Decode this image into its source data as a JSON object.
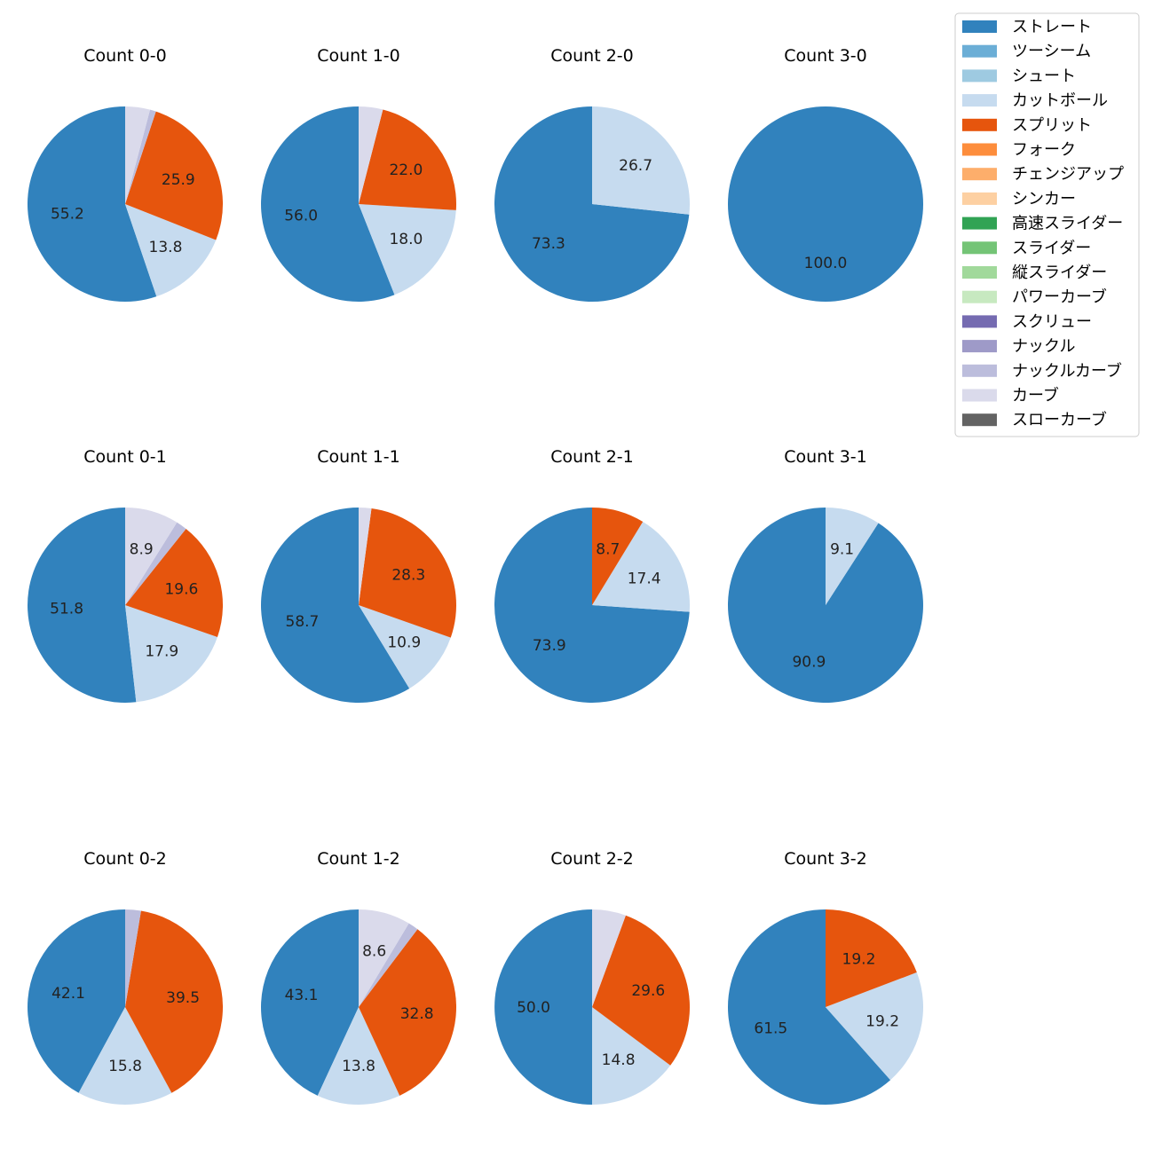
{
  "legend": {
    "items": [
      {
        "label": "ストレート",
        "color": "#3182bd"
      },
      {
        "label": "ツーシーム",
        "color": "#6baed6"
      },
      {
        "label": "シュート",
        "color": "#9ecae1"
      },
      {
        "label": "カットボール",
        "color": "#c6dbef"
      },
      {
        "label": "スプリット",
        "color": "#e6550d"
      },
      {
        "label": "フォーク",
        "color": "#fd8d3c"
      },
      {
        "label": "チェンジアップ",
        "color": "#fdae6b"
      },
      {
        "label": "シンカー",
        "color": "#fdd0a2"
      },
      {
        "label": "高速スライダー",
        "color": "#31a354"
      },
      {
        "label": "スライダー",
        "color": "#74c476"
      },
      {
        "label": "縦スライダー",
        "color": "#a1d99b"
      },
      {
        "label": "パワーカーブ",
        "color": "#c7e9c0"
      },
      {
        "label": "スクリュー",
        "color": "#756bb1"
      },
      {
        "label": "ナックル",
        "color": "#9e9ac8"
      },
      {
        "label": "ナックルカーブ",
        "color": "#bcbddc"
      },
      {
        "label": "カーブ",
        "color": "#dadaeb"
      },
      {
        "label": "スローカーブ",
        "color": "#636363"
      }
    ]
  },
  "chart_data": [
    {
      "type": "pie",
      "title": "Count 0-0",
      "slices": [
        {
          "pitch": "ストレート",
          "value": 55.2,
          "label": "55.2"
        },
        {
          "pitch": "カットボール",
          "value": 13.8,
          "label": "13.8"
        },
        {
          "pitch": "スプリット",
          "value": 25.9,
          "label": "25.9"
        },
        {
          "pitch": "ナックルカーブ",
          "value": 1.0,
          "label": ""
        },
        {
          "pitch": "カーブ",
          "value": 4.1,
          "label": ""
        }
      ]
    },
    {
      "type": "pie",
      "title": "Count 1-0",
      "slices": [
        {
          "pitch": "ストレート",
          "value": 56.0,
          "label": "56.0"
        },
        {
          "pitch": "カットボール",
          "value": 18.0,
          "label": "18.0"
        },
        {
          "pitch": "スプリット",
          "value": 22.0,
          "label": "22.0"
        },
        {
          "pitch": "カーブ",
          "value": 4.0,
          "label": ""
        }
      ]
    },
    {
      "type": "pie",
      "title": "Count 2-0",
      "slices": [
        {
          "pitch": "ストレート",
          "value": 73.3,
          "label": "73.3"
        },
        {
          "pitch": "カットボール",
          "value": 26.7,
          "label": "26.7"
        }
      ]
    },
    {
      "type": "pie",
      "title": "Count 3-0",
      "slices": [
        {
          "pitch": "ストレート",
          "value": 100.0,
          "label": "100.0"
        }
      ]
    },
    {
      "type": "pie",
      "title": "Count 0-1",
      "slices": [
        {
          "pitch": "ストレート",
          "value": 51.8,
          "label": "51.8"
        },
        {
          "pitch": "カットボール",
          "value": 17.9,
          "label": "17.9"
        },
        {
          "pitch": "スプリット",
          "value": 19.6,
          "label": "19.6"
        },
        {
          "pitch": "ナックルカーブ",
          "value": 1.8,
          "label": ""
        },
        {
          "pitch": "カーブ",
          "value": 8.9,
          "label": "8.9"
        }
      ]
    },
    {
      "type": "pie",
      "title": "Count 1-1",
      "slices": [
        {
          "pitch": "ストレート",
          "value": 58.7,
          "label": "58.7"
        },
        {
          "pitch": "カットボール",
          "value": 10.9,
          "label": "10.9"
        },
        {
          "pitch": "スプリット",
          "value": 28.3,
          "label": "28.3"
        },
        {
          "pitch": "カーブ",
          "value": 2.1,
          "label": ""
        }
      ]
    },
    {
      "type": "pie",
      "title": "Count 2-1",
      "slices": [
        {
          "pitch": "ストレート",
          "value": 73.9,
          "label": "73.9"
        },
        {
          "pitch": "カットボール",
          "value": 17.4,
          "label": "17.4"
        },
        {
          "pitch": "スプリット",
          "value": 8.7,
          "label": "8.7"
        }
      ]
    },
    {
      "type": "pie",
      "title": "Count 3-1",
      "slices": [
        {
          "pitch": "ストレート",
          "value": 90.9,
          "label": "90.9"
        },
        {
          "pitch": "カットボール",
          "value": 9.1,
          "label": "9.1"
        }
      ]
    },
    {
      "type": "pie",
      "title": "Count 0-2",
      "slices": [
        {
          "pitch": "ストレート",
          "value": 42.1,
          "label": "42.1"
        },
        {
          "pitch": "カットボール",
          "value": 15.8,
          "label": "15.8"
        },
        {
          "pitch": "スプリット",
          "value": 39.5,
          "label": "39.5"
        },
        {
          "pitch": "ナックルカーブ",
          "value": 2.6,
          "label": ""
        }
      ]
    },
    {
      "type": "pie",
      "title": "Count 1-2",
      "slices": [
        {
          "pitch": "ストレート",
          "value": 43.1,
          "label": "43.1"
        },
        {
          "pitch": "カットボール",
          "value": 13.8,
          "label": "13.8"
        },
        {
          "pitch": "スプリット",
          "value": 32.8,
          "label": "32.8"
        },
        {
          "pitch": "ナックルカーブ",
          "value": 1.7,
          "label": ""
        },
        {
          "pitch": "カーブ",
          "value": 8.6,
          "label": "8.6"
        }
      ]
    },
    {
      "type": "pie",
      "title": "Count 2-2",
      "slices": [
        {
          "pitch": "ストレート",
          "value": 50.0,
          "label": "50.0"
        },
        {
          "pitch": "カットボール",
          "value": 14.8,
          "label": "14.8"
        },
        {
          "pitch": "スプリット",
          "value": 29.6,
          "label": "29.6"
        },
        {
          "pitch": "カーブ",
          "value": 5.6,
          "label": ""
        }
      ]
    },
    {
      "type": "pie",
      "title": "Count 3-2",
      "slices": [
        {
          "pitch": "ストレート",
          "value": 61.5,
          "label": "61.5"
        },
        {
          "pitch": "カットボール",
          "value": 19.2,
          "label": "19.2"
        },
        {
          "pitch": "スプリット",
          "value": 19.2,
          "label": "19.2"
        }
      ]
    }
  ]
}
